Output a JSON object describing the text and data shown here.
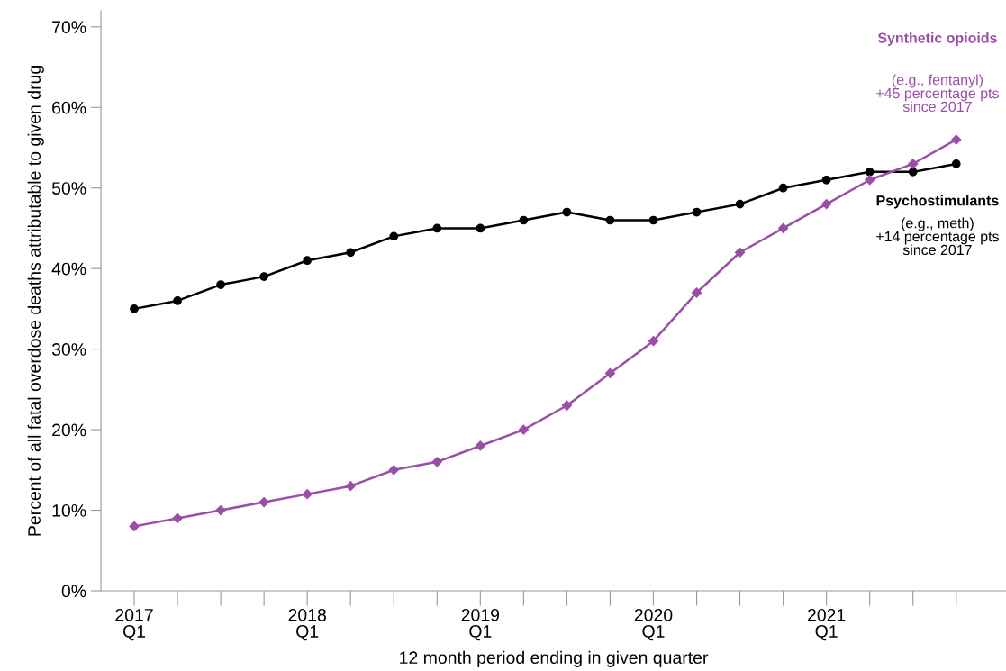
{
  "chart_data": {
    "type": "line",
    "xlabel": "12 month period ending in given quarter",
    "ylabel": "Percent of all fatal overdose deaths attributable to given drug",
    "categories": [
      "2017\nQ1",
      null,
      null,
      null,
      "2018\nQ1",
      null,
      null,
      null,
      "2019\nQ1",
      null,
      null,
      null,
      "2020\nQ1",
      null,
      null,
      null,
      "2021\nQ1",
      null,
      null,
      null
    ],
    "series": [
      {
        "name": "Psychostimulants",
        "color": "#000000",
        "marker": "circle",
        "values": [
          35,
          36,
          38,
          39,
          41,
          42,
          44,
          45,
          45,
          46,
          47,
          46,
          46,
          47,
          48,
          50,
          51,
          52,
          52,
          53
        ]
      },
      {
        "name": "Synthetic opioids",
        "color": "#9b4ea8",
        "marker": "diamond",
        "values": [
          8,
          9,
          10,
          11,
          12,
          13,
          15,
          16,
          18,
          20,
          23,
          27,
          31,
          37,
          42,
          45,
          48,
          51,
          53,
          56
        ]
      }
    ],
    "annotations": [
      "(e.g., meth)\n+14 percentage pts\nsince 2017",
      "(e.g., fentanyl)\n+45 percentage pts\nsince 2017"
    ],
    "ylim": [
      0,
      72
    ],
    "yticks": [
      {
        "value": 0,
        "label": "0%"
      },
      {
        "value": 10,
        "label": "10%"
      },
      {
        "value": 20,
        "label": "20%"
      },
      {
        "value": 30,
        "label": "30%"
      },
      {
        "value": 40,
        "label": "40%"
      },
      {
        "value": 50,
        "label": "50%"
      },
      {
        "value": 60,
        "label": "60%"
      },
      {
        "value": 70,
        "label": "70%"
      }
    ],
    "grid": false,
    "legend": false,
    "line_style": "solid"
  }
}
